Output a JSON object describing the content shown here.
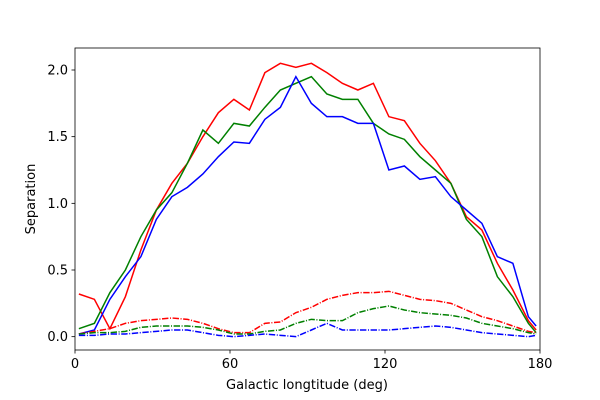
{
  "chart_data": {
    "type": "line",
    "xlabel": "Galactic longtitude (deg)",
    "ylabel": "Separation",
    "xlim": [
      0,
      180
    ],
    "ylim": [
      -0.1,
      2.165
    ],
    "xticks": [
      0,
      60,
      120,
      180
    ],
    "yticks": [
      {
        "value": 0,
        "label": "0.0"
      },
      0.5,
      {
        "value": 1,
        "label": "1.0"
      },
      1.5,
      {
        "value": 2,
        "label": "2.0"
      }
    ],
    "x": [
      1.5,
      7.5,
      13.5,
      19.5,
      25.5,
      31.5,
      37.5,
      43.5,
      49.5,
      55.5,
      61.5,
      67.5,
      73.5,
      79.5,
      85.5,
      91.5,
      97.5,
      103.5,
      109.5,
      115.5,
      121.5,
      127.5,
      133.5,
      139.5,
      145.5,
      151.5,
      157.5,
      163.5,
      169.5,
      175.5,
      178.5
    ],
    "series": [
      {
        "color": "#ff0000",
        "linestyle": "solid",
        "values": [
          0.32,
          0.28,
          0.06,
          0.3,
          0.65,
          0.95,
          1.15,
          1.3,
          1.5,
          1.68,
          1.78,
          1.7,
          1.98,
          2.05,
          2.02,
          2.05,
          1.98,
          1.9,
          1.85,
          1.9,
          1.65,
          1.62,
          1.45,
          1.32,
          1.15,
          0.9,
          0.8,
          0.55,
          0.35,
          0.12,
          0.05
        ]
      },
      {
        "color": "#008000",
        "linestyle": "solid",
        "values": [
          0.06,
          0.1,
          0.33,
          0.5,
          0.75,
          0.95,
          1.08,
          1.3,
          1.55,
          1.45,
          1.6,
          1.58,
          1.72,
          1.85,
          1.9,
          1.95,
          1.82,
          1.78,
          1.78,
          1.6,
          1.52,
          1.48,
          1.35,
          1.25,
          1.15,
          0.88,
          0.75,
          0.45,
          0.3,
          0.1,
          0.03
        ]
      },
      {
        "color": "#0000ff",
        "linestyle": "solid",
        "values": [
          0.02,
          0.05,
          0.28,
          0.45,
          0.6,
          0.88,
          1.05,
          1.12,
          1.22,
          1.35,
          1.46,
          1.45,
          1.63,
          1.72,
          1.95,
          1.75,
          1.65,
          1.65,
          1.6,
          1.6,
          1.25,
          1.28,
          1.18,
          1.2,
          1.05,
          0.95,
          0.85,
          0.6,
          0.55,
          0.15,
          0.08
        ]
      },
      {
        "color": "#ff0000",
        "linestyle": "dashdot",
        "values": [
          0.02,
          0.04,
          0.06,
          0.1,
          0.12,
          0.13,
          0.14,
          0.13,
          0.1,
          0.06,
          0.03,
          0.03,
          0.1,
          0.11,
          0.18,
          0.22,
          0.28,
          0.31,
          0.33,
          0.33,
          0.34,
          0.31,
          0.28,
          0.27,
          0.25,
          0.2,
          0.15,
          0.12,
          0.08,
          0.04,
          0.03
        ]
      },
      {
        "color": "#008000",
        "linestyle": "dashdot",
        "values": [
          0.02,
          0.03,
          0.03,
          0.04,
          0.07,
          0.08,
          0.08,
          0.08,
          0.07,
          0.05,
          0.02,
          0.02,
          0.04,
          0.05,
          0.1,
          0.13,
          0.12,
          0.12,
          0.18,
          0.21,
          0.23,
          0.2,
          0.18,
          0.17,
          0.16,
          0.14,
          0.1,
          0.08,
          0.06,
          0.03,
          0.02
        ]
      },
      {
        "color": "#0000ff",
        "linestyle": "dashdot",
        "values": [
          0.01,
          0.01,
          0.02,
          0.02,
          0.03,
          0.04,
          0.05,
          0.05,
          0.03,
          0.01,
          0.0,
          0.01,
          0.02,
          0.01,
          0.0,
          0.05,
          0.1,
          0.05,
          0.05,
          0.05,
          0.05,
          0.06,
          0.07,
          0.08,
          0.07,
          0.05,
          0.03,
          0.02,
          0.01,
          0.0,
          0.01
        ]
      }
    ]
  }
}
